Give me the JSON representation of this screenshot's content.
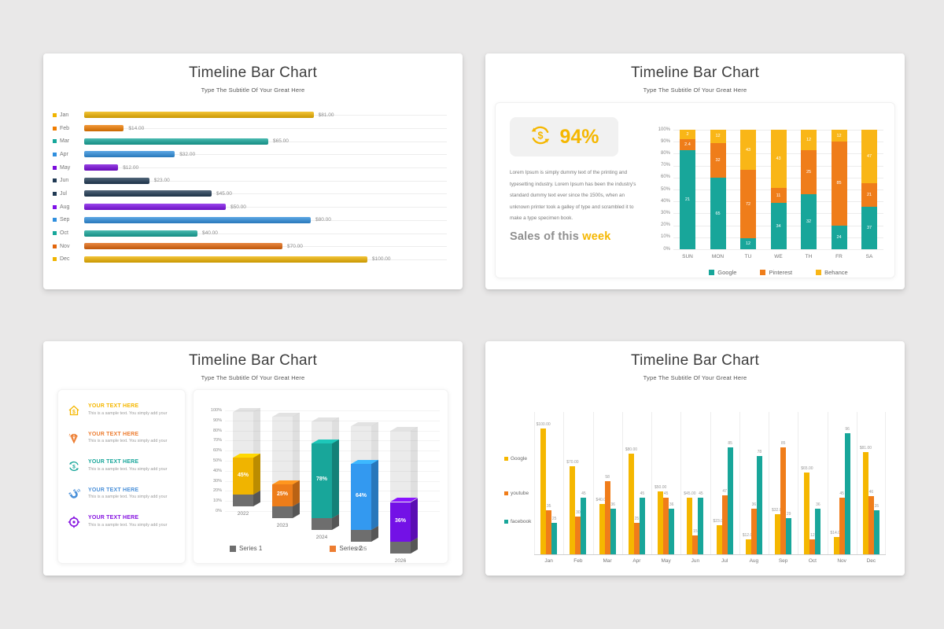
{
  "page": {
    "background": "#e9e8e8",
    "accent_gold": "#F5B700"
  },
  "chart_data": [
    {
      "slide": "top-left",
      "type": "bar",
      "orientation": "horizontal",
      "title": "Timeline Bar Chart",
      "subtitle": "Type The Subtitle Of Your Great Here",
      "categories": [
        "Jan",
        "Feb",
        "Mar",
        "Apr",
        "May",
        "Jun",
        "Jul",
        "Aug",
        "Sep",
        "Oct",
        "Nov",
        "Dec"
      ],
      "values": [
        81,
        14,
        65,
        32,
        12,
        23,
        45,
        50,
        80,
        40,
        70,
        100
      ],
      "value_labels": [
        "$81.00",
        "$14.00",
        "$65.00",
        "$32.00",
        "$12.00",
        "$23.00",
        "$45.00",
        "$50.00",
        "$80.00",
        "$40.00",
        "$70.00",
        "$100.00"
      ],
      "colors": [
        "#F0B400",
        "#F07D00",
        "#17A79B",
        "#2F8FDE",
        "#7A0CDC",
        "#203A54",
        "#203A54",
        "#7F12E8",
        "#2F8FDE",
        "#17A79B",
        "#E2660C",
        "#F0B400"
      ],
      "xlim": [
        0,
        110
      ],
      "grid": "row-lines"
    },
    {
      "slide": "top-right",
      "type": "stacked-bar-100",
      "title": "Timeline Bar Chart",
      "subtitle": "Type The Subtitle Of Your Great Here",
      "categories": [
        "SUN",
        "MON",
        "TU",
        "WE",
        "TH",
        "FR",
        "SA"
      ],
      "series": [
        {
          "name": "Google",
          "color": "#18A69A",
          "values": [
            21,
            65,
            12,
            34,
            32,
            24,
            37
          ]
        },
        {
          "name": "Pinterest",
          "color": "#EF7D1A",
          "values": [
            2.4,
            32,
            72,
            11,
            25,
            85,
            21
          ]
        },
        {
          "name": "Behance",
          "color": "#F9B617",
          "values": [
            2,
            12,
            43,
            43,
            12,
            12,
            47
          ]
        }
      ],
      "y_ticks": [
        "100%",
        "90%",
        "80%",
        "70%",
        "60%",
        "50%",
        "40%",
        "30%",
        "20%",
        "10%",
        "0%"
      ],
      "legend_position": "bottom",
      "panel": {
        "icon": "dollar-refresh-icon",
        "percent": "94%",
        "paragraph": "Lorem Ipsum is simply dummy text of the printing and typesetting industry. Lorem Ipsum has been the industry's standard dummy text ever since the 1500s, when an unknown printer took a galley of type and scrambled it to make a type specimen book.",
        "heading_gray": "Sales of this ",
        "heading_accent": "week"
      }
    },
    {
      "slide": "bottom-left",
      "type": "bar-3d",
      "title": "Timeline Bar Chart",
      "subtitle": "Type The Subtitle Of Your Great Here",
      "categories": [
        "2022",
        "2023",
        "2024",
        "2025",
        "2026"
      ],
      "values": [
        45,
        25,
        78,
        64,
        36
      ],
      "value_labels": [
        "45%",
        "25%",
        "78%",
        "64%",
        "36%"
      ],
      "colors": [
        "#F0B400",
        "#ED7D1A",
        "#18A69A",
        "#3399F0",
        "#7311E6"
      ],
      "y_ticks": [
        "100%",
        "90%",
        "80%",
        "70%",
        "60%",
        "50%",
        "40%",
        "30%",
        "20%",
        "10%",
        "0%"
      ],
      "legend": [
        {
          "name": "Series 1",
          "color": "#6E6E6E"
        },
        {
          "name": "Series 2",
          "color": "#ED7D31"
        }
      ],
      "list_items": [
        {
          "icon": "house-dollar-icon",
          "color": "#F5B700",
          "title": "YOUR TEXT HERE",
          "desc": "This is a sample text. You simply add your"
        },
        {
          "icon": "diamond-icon",
          "color": "#ED7D31",
          "title": "YOUR TEXT HERE",
          "desc": "This is a sample text. You simply add your"
        },
        {
          "icon": "dollar-refresh-icon",
          "color": "#18A69A",
          "title": "YOUR TEXT HERE",
          "desc": "This is a sample text. You simply add your"
        },
        {
          "icon": "magnet-icon",
          "color": "#4A90D9",
          "title": "YOUR TEXT HERE",
          "desc": "This is a sample text. You simply add your"
        },
        {
          "icon": "target-icon",
          "color": "#8512E0",
          "title": "YOUR TEXT HERE",
          "desc": "This is a sample text. You simply add your"
        }
      ]
    },
    {
      "slide": "bottom-right",
      "type": "grouped-bar",
      "title": "Timeline Bar Chart",
      "subtitle": "Type The Subtitle Of Your Great Here",
      "categories": [
        "Jan",
        "Feb",
        "Mar",
        "Apr",
        "May",
        "Jun",
        "Jul",
        "Aug",
        "Sep",
        "Oct",
        "Nov",
        "Dec"
      ],
      "series": [
        {
          "name": "Google",
          "color": "#F5B700",
          "values": [
            100,
            70,
            40,
            80,
            50,
            45,
            23,
            12,
            32,
            65,
            14,
            81
          ],
          "labels": [
            "$100.00",
            "$70.00",
            "$40.00",
            "$80.00",
            "$50.00",
            "$45.00",
            "$23.00",
            "$12.00",
            "$32.00",
            "$65.00",
            "$14.00",
            "$81.00"
          ]
        },
        {
          "name": "youtube",
          "color": "#F07D1A",
          "values": [
            35,
            30,
            58,
            25,
            45,
            15,
            47,
            36,
            85,
            12,
            45,
            46
          ]
        },
        {
          "name": "facebook",
          "color": "#18A69A",
          "values": [
            25,
            45,
            36,
            45,
            36,
            45,
            85,
            78,
            29,
            36,
            96,
            35
          ]
        }
      ],
      "legend_position": "left"
    }
  ]
}
